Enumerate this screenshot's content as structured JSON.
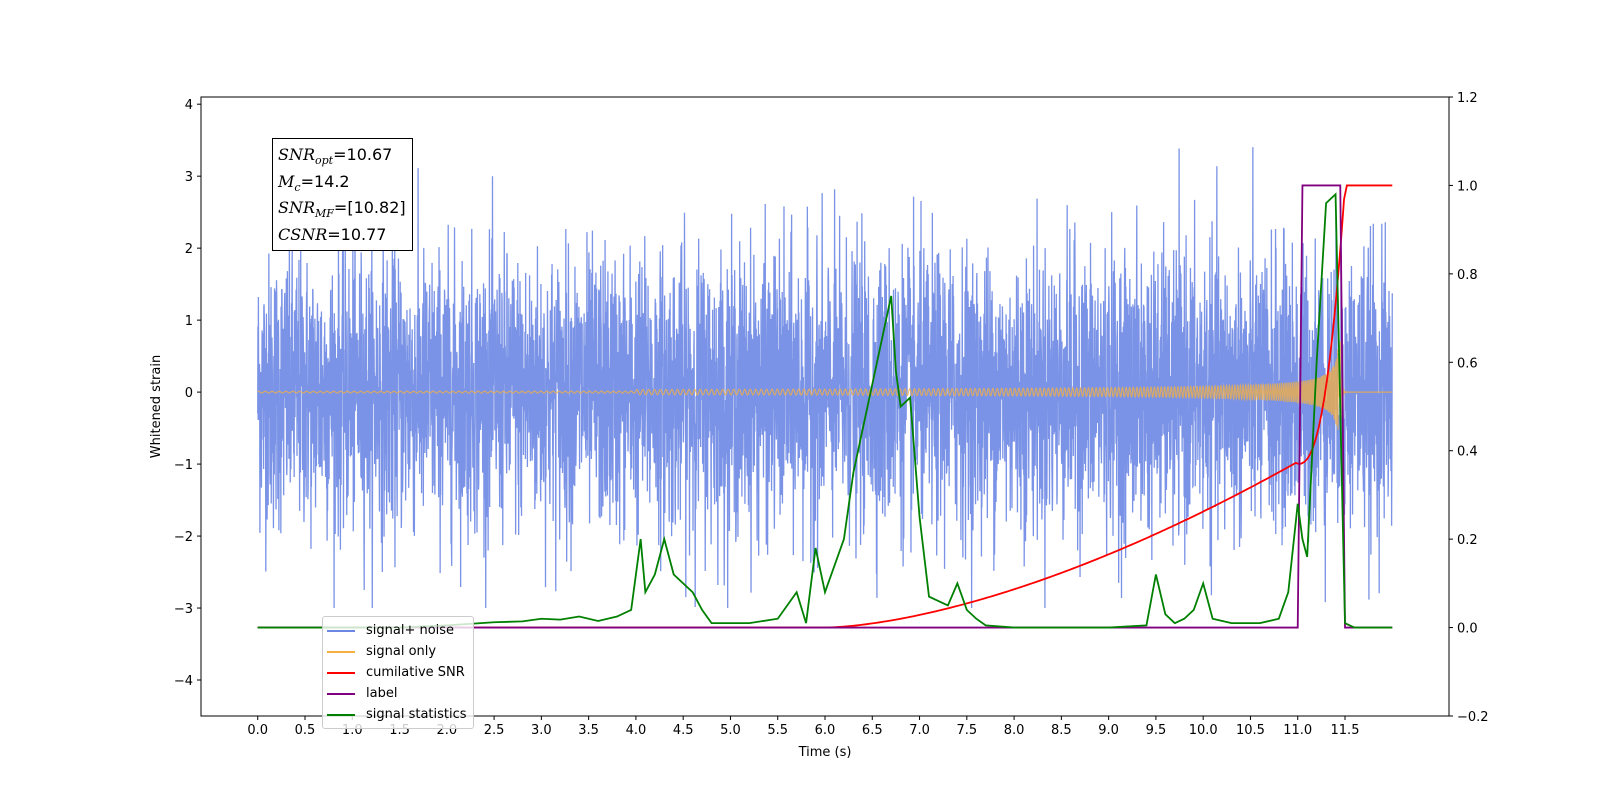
{
  "chart_data": {
    "type": "line",
    "xlabel": "Time (s)",
    "ylabel_left": "Whitened strain",
    "ylabel_right": "",
    "xlim": [
      -0.6,
      12.6
    ],
    "ylim_left": [
      -4.5,
      4.1
    ],
    "ylim_right": [
      -0.2,
      1.2
    ],
    "x_ticks": [
      "0.0",
      "0.5",
      "1.0",
      "1.5",
      "2.0",
      "2.5",
      "3.0",
      "3.5",
      "4.0",
      "4.5",
      "5.0",
      "5.5",
      "6.0",
      "6.5",
      "7.0",
      "7.5",
      "8.0",
      "8.5",
      "9.0",
      "9.5",
      "10.0",
      "10.5",
      "11.0",
      "11.5"
    ],
    "y_ticks_left": [
      "−4",
      "−3",
      "−2",
      "−1",
      "0",
      "1",
      "2",
      "3",
      "4"
    ],
    "y_ticks_right": [
      "−0.2",
      "0.0",
      "0.2",
      "0.4",
      "0.6",
      "0.8",
      "1.0",
      "1.2"
    ],
    "grid": false,
    "legend_position": "lower-left",
    "colors": {
      "signal_noise": "#6b87e3",
      "signal_only": "#f5b041",
      "cumulative_snr": "#ff0000",
      "label": "#800080",
      "signal_statistics": "#008000"
    },
    "series": [
      {
        "name": "signal+ noise",
        "axis": "left",
        "x_range": [
          0.0,
          12.0
        ],
        "envelope_min": -3.0,
        "envelope_max": 3.7,
        "typical_range": [
          -1.5,
          1.5
        ]
      },
      {
        "name": "signal only",
        "axis": "left",
        "x_range": [
          0.0,
          12.0
        ],
        "chirp_start": 7.0,
        "merger": 11.45,
        "peak_amplitude": 0.7
      },
      {
        "name": "cumilative SNR",
        "axis": "right",
        "x": [
          0.0,
          6.0,
          6.5,
          7.0,
          7.5,
          8.0,
          8.5,
          9.0,
          9.5,
          10.0,
          10.5,
          11.0,
          11.2,
          11.35,
          11.45,
          11.5,
          12.0
        ],
        "y": [
          0.0,
          0.0,
          0.002,
          0.01,
          0.03,
          0.06,
          0.09,
          0.12,
          0.15,
          0.19,
          0.25,
          0.37,
          0.47,
          0.62,
          0.8,
          1.0,
          1.0
        ]
      },
      {
        "name": "label",
        "axis": "right",
        "x": [
          0.0,
          11.0,
          11.05,
          11.45,
          11.5,
          12.0
        ],
        "y": [
          0.0,
          0.0,
          1.0,
          1.0,
          0.0,
          0.0
        ]
      },
      {
        "name": "signal statistics",
        "axis": "right",
        "x": [
          0.0,
          1.5,
          2.0,
          2.5,
          2.8,
          3.0,
          3.2,
          3.4,
          3.6,
          3.8,
          3.95,
          4.05,
          4.1,
          4.2,
          4.3,
          4.4,
          4.5,
          4.6,
          4.7,
          4.8,
          5.0,
          5.2,
          5.5,
          5.7,
          5.8,
          5.9,
          6.0,
          6.1,
          6.2,
          6.3,
          6.4,
          6.5,
          6.6,
          6.7,
          6.75,
          6.8,
          6.9,
          7.0,
          7.1,
          7.2,
          7.3,
          7.4,
          7.5,
          7.6,
          7.7,
          8.0,
          9.0,
          9.4,
          9.5,
          9.6,
          9.7,
          9.8,
          9.9,
          10.0,
          10.1,
          10.3,
          10.6,
          10.8,
          10.9,
          11.0,
          11.05,
          11.1,
          11.2,
          11.3,
          11.4,
          11.5,
          11.6,
          12.0
        ],
        "y": [
          0.0,
          0.0,
          0.005,
          0.012,
          0.014,
          0.02,
          0.018,
          0.025,
          0.015,
          0.025,
          0.04,
          0.2,
          0.08,
          0.12,
          0.2,
          0.12,
          0.1,
          0.08,
          0.04,
          0.01,
          0.01,
          0.01,
          0.02,
          0.08,
          0.01,
          0.18,
          0.08,
          0.14,
          0.2,
          0.35,
          0.45,
          0.55,
          0.65,
          0.75,
          0.58,
          0.5,
          0.52,
          0.25,
          0.07,
          0.06,
          0.05,
          0.1,
          0.04,
          0.02,
          0.005,
          0.0,
          0.0,
          0.005,
          0.12,
          0.03,
          0.01,
          0.02,
          0.04,
          0.1,
          0.02,
          0.01,
          0.01,
          0.02,
          0.08,
          0.28,
          0.2,
          0.16,
          0.6,
          0.96,
          0.98,
          0.01,
          0.0,
          0.0
        ]
      }
    ],
    "annotation": {
      "snr_opt": "10.67",
      "mc": "14.2",
      "snr_mf": "[10.82]",
      "csnr": "10.77"
    }
  },
  "legend": {
    "items": [
      {
        "label": "signal+ noise",
        "color": "#6b87e3"
      },
      {
        "label": "signal only",
        "color": "#f5b041"
      },
      {
        "label": "cumilative SNR",
        "color": "#ff0000"
      },
      {
        "label": "label",
        "color": "#800080"
      },
      {
        "label": "signal statistics",
        "color": "#008000"
      }
    ]
  }
}
